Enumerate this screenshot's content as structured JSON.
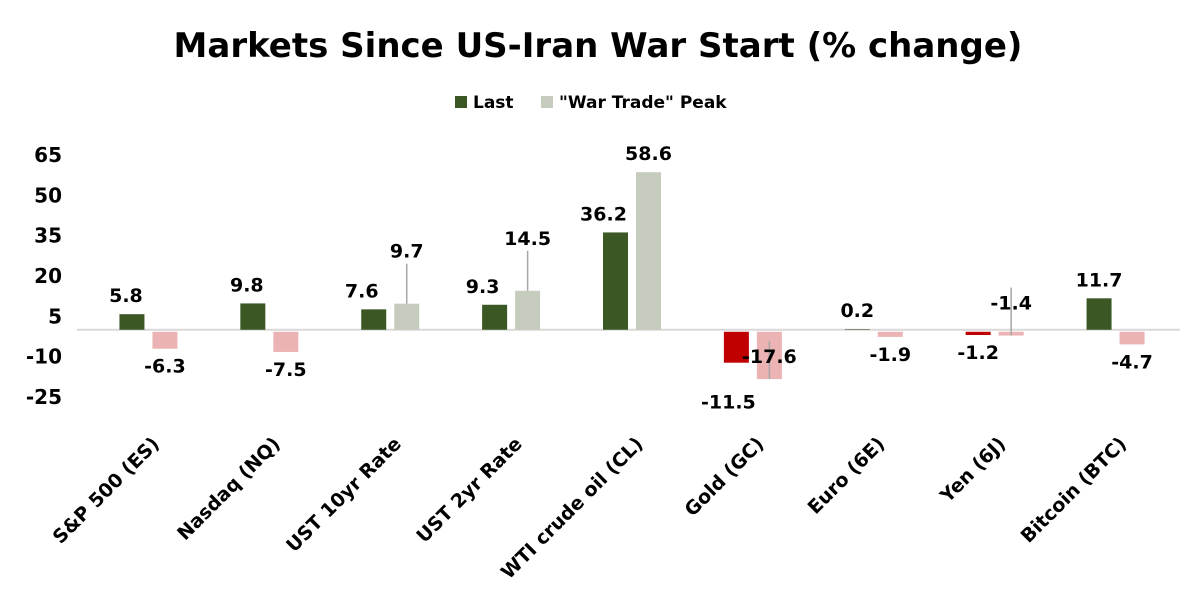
{
  "chart_data": {
    "type": "bar",
    "title": "Markets Since US-Iran War Start (% change)",
    "categories": [
      "S&P 500 (ES)",
      "Nasdaq (NQ)",
      "UST 10yr Rate",
      "UST 2yr Rate",
      "WTI crude oil (CL)",
      "Gold (GC)",
      "Euro (6E)",
      "Yen (6J)",
      "Bitcoin (BTC)"
    ],
    "series": [
      {
        "name": "Last",
        "values": [
          5.8,
          9.8,
          7.6,
          9.3,
          36.2,
          -11.5,
          0.2,
          -1.2,
          11.7
        ],
        "color": "#3B5723",
        "negative_color": "#C00000"
      },
      {
        "name": "\"War Trade\" Peak",
        "values": [
          -6.3,
          -7.5,
          9.7,
          14.5,
          58.6,
          -17.6,
          -1.9,
          -1.4,
          -4.7
        ],
        "color": "#C5CCBD",
        "negative_color": "#EBB3B3"
      }
    ],
    "yticks": [
      65,
      50,
      35,
      20,
      5,
      -10,
      -25
    ],
    "ylim": [
      -25,
      65
    ],
    "xlabel": "",
    "ylabel": "",
    "grid": false,
    "legend_position": "top",
    "data_labels": true
  }
}
